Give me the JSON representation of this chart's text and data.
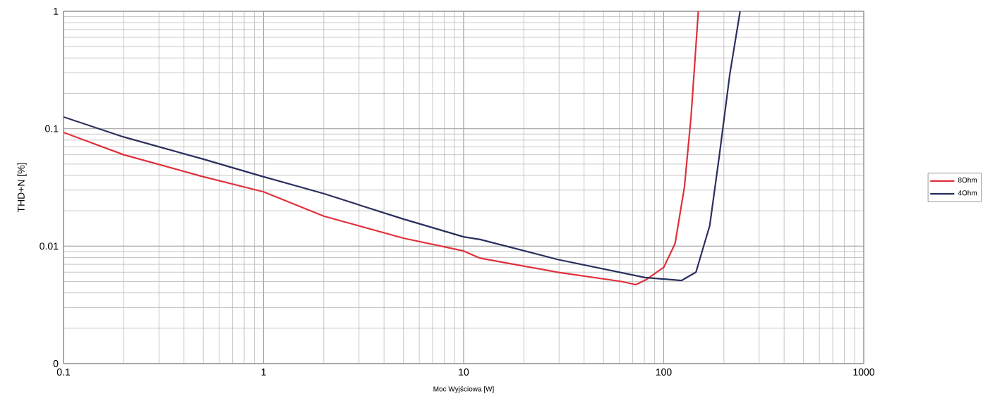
{
  "chart_data": {
    "type": "line",
    "xlabel": "Moc Wyjściowa [W]",
    "ylabel": "THD+N [%]",
    "log": "xy",
    "grid": true,
    "legend": "right",
    "xlim": [
      0.1,
      1000
    ],
    "ylim": [
      0.001,
      1
    ],
    "xticks": [
      0.1,
      1,
      10,
      100,
      1000
    ],
    "yticks": [
      {
        "value": 0.001,
        "label": "0"
      },
      0.01,
      0.1,
      1
    ],
    "series": [
      {
        "name": "8Ohm",
        "color": "#e0303a",
        "x": [
          0.1,
          0.2,
          0.5,
          1,
          2,
          5,
          10,
          12.1,
          29.5,
          61.5,
          72.5,
          82,
          100,
          114,
          127,
          137,
          149
        ],
        "values": [
          0.093,
          0.06,
          0.039,
          0.029,
          0.018,
          0.0117,
          0.0091,
          0.0079,
          0.006,
          0.005,
          0.0047,
          0.0052,
          0.0066,
          0.0105,
          0.032,
          0.126,
          1.0
        ]
      },
      {
        "name": "4Ohm",
        "color": "#2a2f5e",
        "x": [
          0.1,
          0.2,
          0.5,
          1,
          2,
          5,
          10,
          12.1,
          29.5,
          80.7,
          123,
          145,
          170,
          190,
          214,
          241
        ],
        "values": [
          0.126,
          0.085,
          0.055,
          0.039,
          0.028,
          0.017,
          0.012,
          0.0114,
          0.0077,
          0.0054,
          0.0051,
          0.006,
          0.015,
          0.06,
          0.29,
          1.0
        ]
      }
    ]
  }
}
